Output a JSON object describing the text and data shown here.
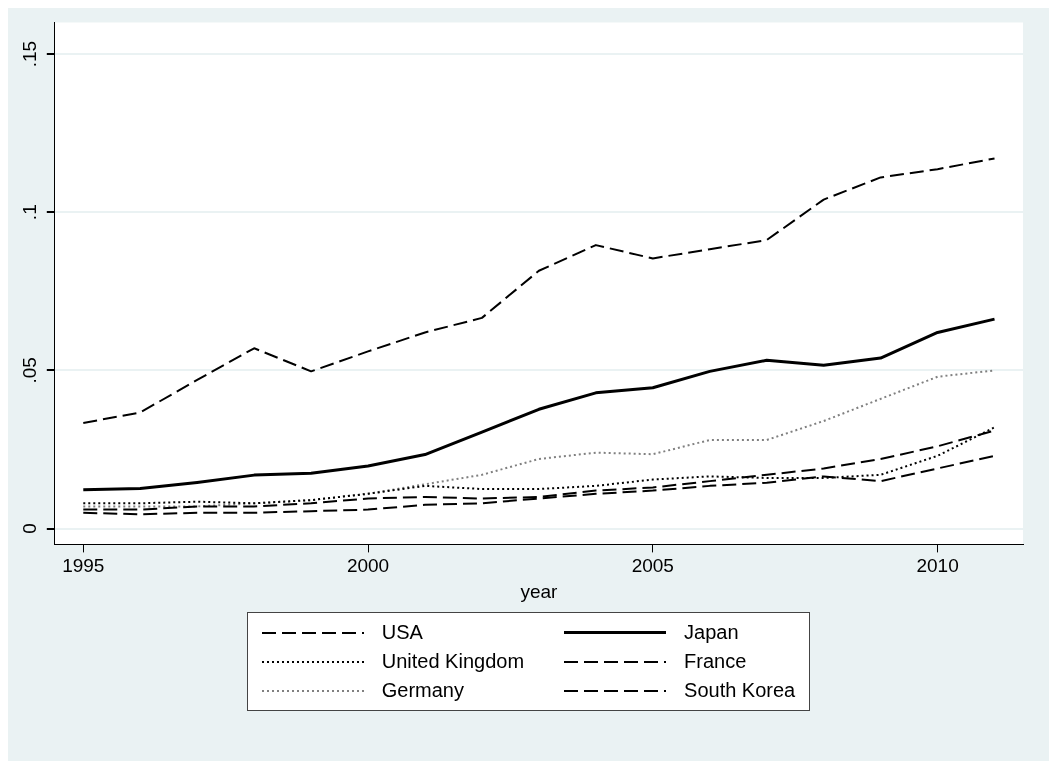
{
  "chart_data": {
    "type": "line",
    "xlabel": "year",
    "x": [
      1995,
      1996,
      1997,
      1998,
      1999,
      2000,
      2001,
      2002,
      2003,
      2004,
      2005,
      2006,
      2007,
      2008,
      2009,
      2010,
      2011
    ],
    "xlim": [
      1994.5,
      2011.5
    ],
    "xticks": [
      1995,
      2000,
      2005,
      2010
    ],
    "ylim": [
      -0.005,
      0.16
    ],
    "yticks": [
      0,
      {
        "value": 0.05,
        "label": ".05"
      },
      {
        "value": 0.1,
        "label": ".1"
      },
      {
        "value": 0.15,
        "label": ".15"
      }
    ],
    "grid": "y",
    "legend": "bottom",
    "marker": "none",
    "series": [
      {
        "name": "USA",
        "color": "#000000",
        "line_style": "dashed",
        "values": [
          0.006,
          0.006,
          0.007,
          0.007,
          0.008,
          0.0095,
          0.01,
          0.0095,
          0.01,
          0.012,
          0.013,
          0.015,
          0.017,
          0.019,
          0.022,
          0.026,
          0.031
        ]
      },
      {
        "name": "Japan",
        "color": "#000000",
        "line_style": "solid",
        "values": [
          0.0123,
          0.0127,
          0.0146,
          0.0169,
          0.0175,
          0.0198,
          0.0234,
          0.0305,
          0.0377,
          0.0429,
          0.0445,
          0.0497,
          0.0532,
          0.0516,
          0.0539,
          0.062,
          0.0662
        ]
      },
      {
        "name": "United Kingdom",
        "color": "#000000",
        "line_style": "dotted",
        "values": [
          0.008,
          0.008,
          0.0085,
          0.008,
          0.009,
          0.011,
          0.0135,
          0.0125,
          0.0125,
          0.0135,
          0.0155,
          0.0165,
          0.016,
          0.016,
          0.017,
          0.023,
          0.032
        ]
      },
      {
        "name": "France",
        "color": "#000000",
        "line_style": "dashed",
        "values": [
          0.005,
          0.0045,
          0.005,
          0.005,
          0.0055,
          0.006,
          0.0075,
          0.008,
          0.0095,
          0.011,
          0.012,
          0.0135,
          0.0145,
          0.0165,
          0.015,
          0.019,
          0.023
        ]
      },
      {
        "name": "Germany",
        "color": "#808080",
        "line_style": "dotted",
        "values": [
          0.007,
          0.007,
          0.007,
          0.008,
          0.009,
          0.011,
          0.014,
          0.017,
          0.022,
          0.024,
          0.0235,
          0.028,
          0.028,
          0.034,
          0.041,
          0.048,
          0.05
        ]
      },
      {
        "name": "South Korea",
        "color": "#000000",
        "line_style": "dashed",
        "values": [
          0.0334,
          0.0367,
          0.047,
          0.057,
          0.0497,
          0.056,
          0.062,
          0.0666,
          0.0815,
          0.0896,
          0.0854,
          0.0883,
          0.0912,
          0.104,
          0.111,
          0.1136,
          0.117
        ]
      }
    ]
  }
}
